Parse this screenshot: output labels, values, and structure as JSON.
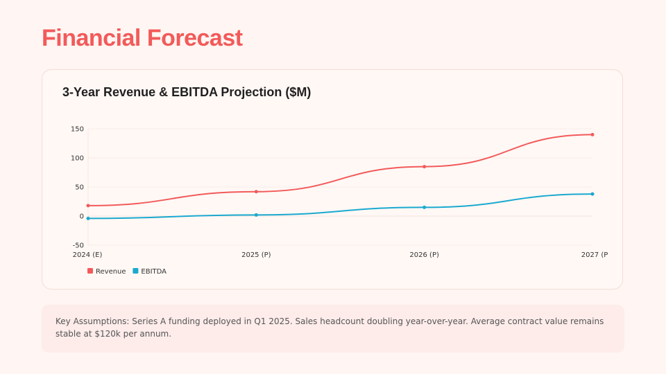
{
  "page": {
    "title": "Financial Forecast",
    "notes": "Key Assumptions: Series A funding deployed in Q1 2025. Sales headcount doubling year-over-year. Average contract value remains stable at $120k per annum."
  },
  "colors": {
    "accent": "#f25a5a",
    "revenue": "#f25a5a",
    "ebitda": "#19a9cf"
  },
  "chart_data": {
    "type": "line",
    "title": "3-Year Revenue & EBITDA Projection ($M)",
    "categories": [
      "2024 (E)",
      "2025 (P)",
      "2026 (P)",
      "2027 (P"
    ],
    "series": [
      {
        "name": "Revenue",
        "values": [
          18,
          42,
          85,
          140
        ]
      },
      {
        "name": "EBITDA",
        "values": [
          -4,
          2,
          15,
          38
        ]
      }
    ],
    "ylim": [
      -50,
      150
    ],
    "yticks": [
      150,
      100,
      50,
      0,
      -50
    ],
    "xlabel": "",
    "ylabel": "",
    "grid": true,
    "legend": "bottom-left"
  }
}
